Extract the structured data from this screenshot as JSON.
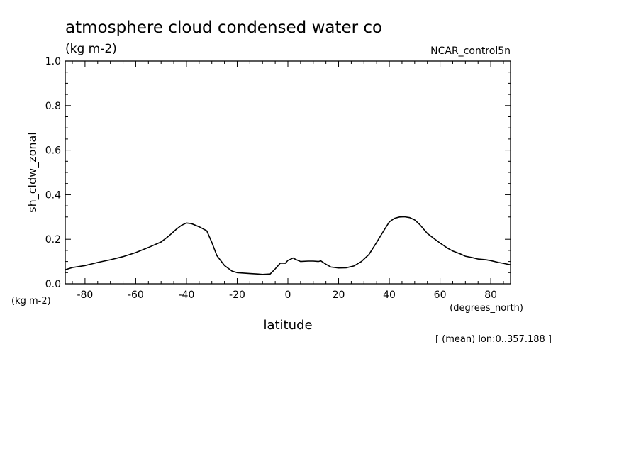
{
  "chart_data": {
    "type": "line",
    "title": "atmosphere cloud condensed water co",
    "subtitle": "(kg m-2)",
    "run_label": "NCAR_control5n",
    "ylabel": "sh_cldw_zonal",
    "yunits": "(kg m-2)",
    "xlabel": "latitude",
    "xunits": "(degrees_north)",
    "note": "[ (mean) lon:0..357.188 ]",
    "xlim": [
      -87.8,
      87.8
    ],
    "ylim": [
      0,
      1
    ],
    "xticks": [
      -80,
      -60,
      -40,
      -20,
      0,
      20,
      40,
      60,
      80
    ],
    "xtick_labels": [
      "-80",
      "-60",
      "-40",
      "-20",
      "0",
      "20",
      "40",
      "60",
      "80"
    ],
    "yticks": [
      0,
      0.2,
      0.4,
      0.6,
      0.8,
      1.0
    ],
    "ytick_labels": [
      "0.0",
      "0.2",
      "0.4",
      "0.6",
      "0.8",
      "1.0"
    ],
    "line_color": "#000000",
    "series": [
      {
        "x": [
          -87.8,
          -85,
          -80,
          -75,
          -70,
          -65,
          -60,
          -55,
          -50,
          -47,
          -44,
          -42,
          -40,
          -38,
          -35,
          -32,
          -30,
          -28,
          -25,
          -22,
          -20,
          -15,
          -12,
          -10,
          -7,
          -5,
          -3,
          -1,
          0,
          1,
          2,
          3,
          5,
          8,
          10,
          12,
          13,
          15,
          17,
          20,
          23,
          26,
          29,
          32,
          35,
          38,
          40,
          42,
          44,
          46,
          48,
          50,
          52,
          55,
          58,
          60,
          63,
          65,
          68,
          70,
          73,
          75,
          78,
          80,
          83,
          85,
          87.8
        ],
        "y": [
          0.063,
          0.073,
          0.082,
          0.096,
          0.108,
          0.122,
          0.14,
          0.163,
          0.188,
          0.214,
          0.245,
          0.262,
          0.273,
          0.27,
          0.256,
          0.238,
          0.186,
          0.126,
          0.082,
          0.057,
          0.05,
          0.046,
          0.044,
          0.042,
          0.044,
          0.067,
          0.093,
          0.092,
          0.105,
          0.11,
          0.116,
          0.11,
          0.1,
          0.102,
          0.102,
          0.1,
          0.103,
          0.088,
          0.075,
          0.071,
          0.072,
          0.08,
          0.1,
          0.132,
          0.186,
          0.242,
          0.278,
          0.294,
          0.3,
          0.301,
          0.297,
          0.287,
          0.266,
          0.226,
          0.2,
          0.183,
          0.16,
          0.147,
          0.134,
          0.124,
          0.117,
          0.111,
          0.108,
          0.104,
          0.096,
          0.092,
          0.085
        ]
      }
    ]
  }
}
